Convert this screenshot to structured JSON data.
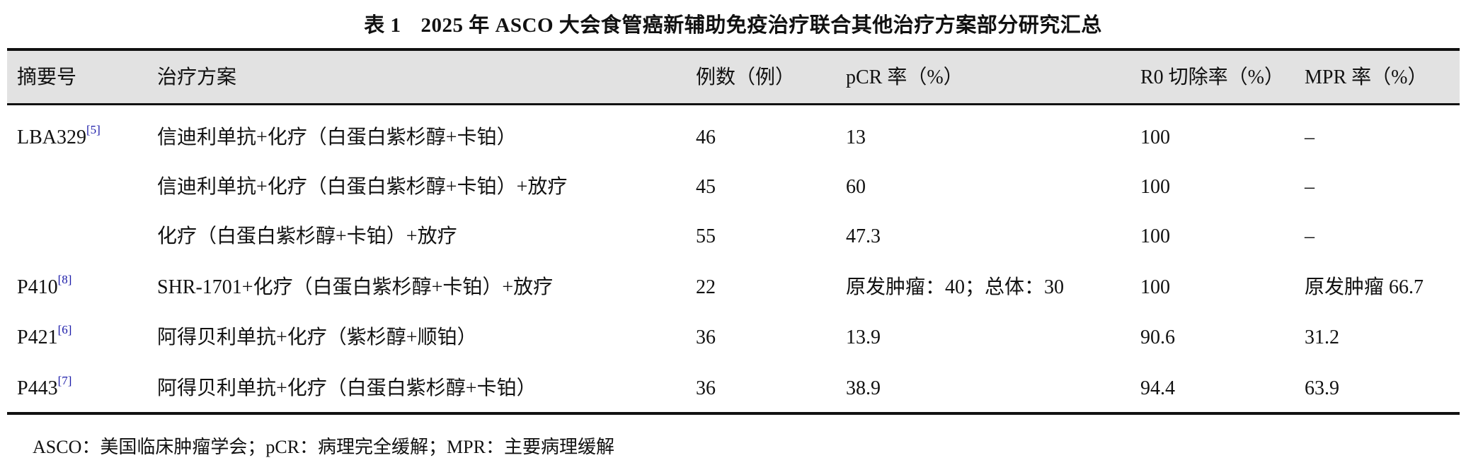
{
  "title": {
    "number": "表 1",
    "text": "2025 年 ASCO 大会食管癌新辅助免疫治疗联合其他治疗方案部分研究汇总"
  },
  "headers": [
    "摘要号",
    "治疗方案",
    "例数（例）",
    "pCR 率（%）",
    "R0 切除率（%）",
    "MPR 率（%）"
  ],
  "rows": [
    {
      "id": "LBA329",
      "ref": "[5]",
      "regimen": "信迪利单抗+化疗（白蛋白紫杉醇+卡铂）",
      "n": "46",
      "pcr": "13",
      "r0": "100",
      "mpr": "–"
    },
    {
      "id": "",
      "ref": "",
      "regimen": "信迪利单抗+化疗（白蛋白紫杉醇+卡铂）+放疗",
      "n": "45",
      "pcr": "60",
      "r0": "100",
      "mpr": "–"
    },
    {
      "id": "",
      "ref": "",
      "regimen": "化疗（白蛋白紫杉醇+卡铂）+放疗",
      "n": "55",
      "pcr": "47.3",
      "r0": "100",
      "mpr": "–"
    },
    {
      "id": "P410",
      "ref": "[8]",
      "regimen": "SHR-1701+化疗（白蛋白紫杉醇+卡铂）+放疗",
      "n": "22",
      "pcr": "原发肿瘤：40；总体：30",
      "r0": "100",
      "mpr": "原发肿瘤 66.7"
    },
    {
      "id": "P421",
      "ref": "[6]",
      "regimen": "阿得贝利单抗+化疗（紫杉醇+顺铂）",
      "n": "36",
      "pcr": "13.9",
      "r0": "90.6",
      "mpr": "31.2"
    },
    {
      "id": "P443",
      "ref": "[7]",
      "regimen": "阿得贝利单抗+化疗（白蛋白紫杉醇+卡铂）",
      "n": "36",
      "pcr": "38.9",
      "r0": "94.4",
      "mpr": "63.9"
    }
  ],
  "footnote": "ASCO：美国临床肿瘤学会；pCR：病理完全缓解；MPR：主要病理缓解",
  "colors": {
    "header_bg": "#e2e2e2",
    "ref_link": "#1a1aa8"
  }
}
